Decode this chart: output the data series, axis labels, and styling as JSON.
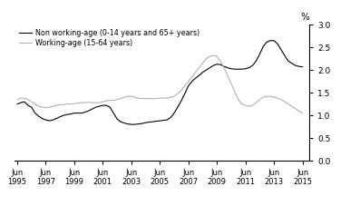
{
  "legend_labels": [
    "Non working-age (0-14 years and 65+ years)",
    "Working-age (15-64 years)"
  ],
  "line_colors": [
    "#000000",
    "#b0b0b0"
  ],
  "ylabel": "%",
  "ylim": [
    0,
    3.0
  ],
  "yticks": [
    0,
    0.5,
    1.0,
    1.5,
    2.0,
    2.5,
    3.0
  ],
  "xtick_years": [
    1995,
    1997,
    1999,
    2001,
    2003,
    2005,
    2007,
    2009,
    2011,
    2013,
    2015
  ],
  "non_working_age_x": [
    1995.0,
    1995.25,
    1995.5,
    1995.75,
    1996.0,
    1996.25,
    1996.5,
    1996.75,
    1997.0,
    1997.25,
    1997.5,
    1997.75,
    1998.0,
    1998.25,
    1998.5,
    1998.75,
    1999.0,
    1999.25,
    1999.5,
    1999.75,
    2000.0,
    2000.25,
    2000.5,
    2000.75,
    2001.0,
    2001.25,
    2001.5,
    2001.75,
    2002.0,
    2002.25,
    2002.5,
    2002.75,
    2003.0,
    2003.25,
    2003.5,
    2003.75,
    2004.0,
    2004.25,
    2004.5,
    2004.75,
    2005.0,
    2005.25,
    2005.5,
    2005.75,
    2006.0,
    2006.25,
    2006.5,
    2006.75,
    2007.0,
    2007.25,
    2007.5,
    2007.75,
    2008.0,
    2008.25,
    2008.5,
    2008.75,
    2009.0,
    2009.25,
    2009.5,
    2009.75,
    2010.0,
    2010.25,
    2010.5,
    2010.75,
    2011.0,
    2011.25,
    2011.5,
    2011.75,
    2012.0,
    2012.25,
    2012.5,
    2012.75,
    2013.0,
    2013.25,
    2013.5,
    2013.75,
    2014.0,
    2014.25,
    2014.5,
    2014.75,
    2015.0
  ],
  "non_working_age_y": [
    1.25,
    1.28,
    1.3,
    1.22,
    1.18,
    1.05,
    0.98,
    0.93,
    0.9,
    0.88,
    0.9,
    0.93,
    0.97,
    1.0,
    1.02,
    1.03,
    1.05,
    1.05,
    1.05,
    1.07,
    1.1,
    1.14,
    1.18,
    1.2,
    1.22,
    1.22,
    1.18,
    1.05,
    0.92,
    0.86,
    0.83,
    0.81,
    0.8,
    0.8,
    0.81,
    0.82,
    0.84,
    0.85,
    0.86,
    0.87,
    0.88,
    0.89,
    0.9,
    0.95,
    1.05,
    1.18,
    1.32,
    1.48,
    1.65,
    1.75,
    1.82,
    1.88,
    1.95,
    2.0,
    2.05,
    2.1,
    2.13,
    2.12,
    2.08,
    2.05,
    2.03,
    2.02,
    2.02,
    2.02,
    2.03,
    2.05,
    2.1,
    2.2,
    2.35,
    2.52,
    2.62,
    2.65,
    2.65,
    2.58,
    2.45,
    2.32,
    2.2,
    2.15,
    2.1,
    2.08,
    2.07
  ],
  "working_age_x": [
    1995.0,
    1995.25,
    1995.5,
    1995.75,
    1996.0,
    1996.25,
    1996.5,
    1996.75,
    1997.0,
    1997.25,
    1997.5,
    1997.75,
    1998.0,
    1998.25,
    1998.5,
    1998.75,
    1999.0,
    1999.25,
    1999.5,
    1999.75,
    2000.0,
    2000.25,
    2000.5,
    2000.75,
    2001.0,
    2001.25,
    2001.5,
    2001.75,
    2002.0,
    2002.25,
    2002.5,
    2002.75,
    2003.0,
    2003.25,
    2003.5,
    2003.75,
    2004.0,
    2004.25,
    2004.5,
    2004.75,
    2005.0,
    2005.25,
    2005.5,
    2005.75,
    2006.0,
    2006.25,
    2006.5,
    2006.75,
    2007.0,
    2007.25,
    2007.5,
    2007.75,
    2008.0,
    2008.25,
    2008.5,
    2008.75,
    2009.0,
    2009.25,
    2009.5,
    2009.75,
    2010.0,
    2010.25,
    2010.5,
    2010.75,
    2011.0,
    2011.25,
    2011.5,
    2011.75,
    2012.0,
    2012.25,
    2012.5,
    2012.75,
    2013.0,
    2013.25,
    2013.5,
    2013.75,
    2014.0,
    2014.25,
    2014.5,
    2014.75,
    2015.0
  ],
  "working_age_y": [
    1.35,
    1.38,
    1.38,
    1.35,
    1.3,
    1.25,
    1.2,
    1.18,
    1.17,
    1.18,
    1.2,
    1.22,
    1.23,
    1.24,
    1.25,
    1.25,
    1.26,
    1.27,
    1.28,
    1.28,
    1.29,
    1.28,
    1.28,
    1.28,
    1.3,
    1.32,
    1.33,
    1.33,
    1.35,
    1.37,
    1.4,
    1.42,
    1.42,
    1.4,
    1.38,
    1.37,
    1.37,
    1.37,
    1.37,
    1.37,
    1.38,
    1.38,
    1.38,
    1.4,
    1.42,
    1.48,
    1.55,
    1.65,
    1.75,
    1.85,
    1.95,
    2.05,
    2.15,
    2.25,
    2.3,
    2.32,
    2.3,
    2.2,
    2.05,
    1.88,
    1.7,
    1.52,
    1.35,
    1.25,
    1.22,
    1.2,
    1.22,
    1.28,
    1.35,
    1.4,
    1.42,
    1.42,
    1.4,
    1.38,
    1.35,
    1.3,
    1.25,
    1.2,
    1.15,
    1.1,
    1.05
  ]
}
